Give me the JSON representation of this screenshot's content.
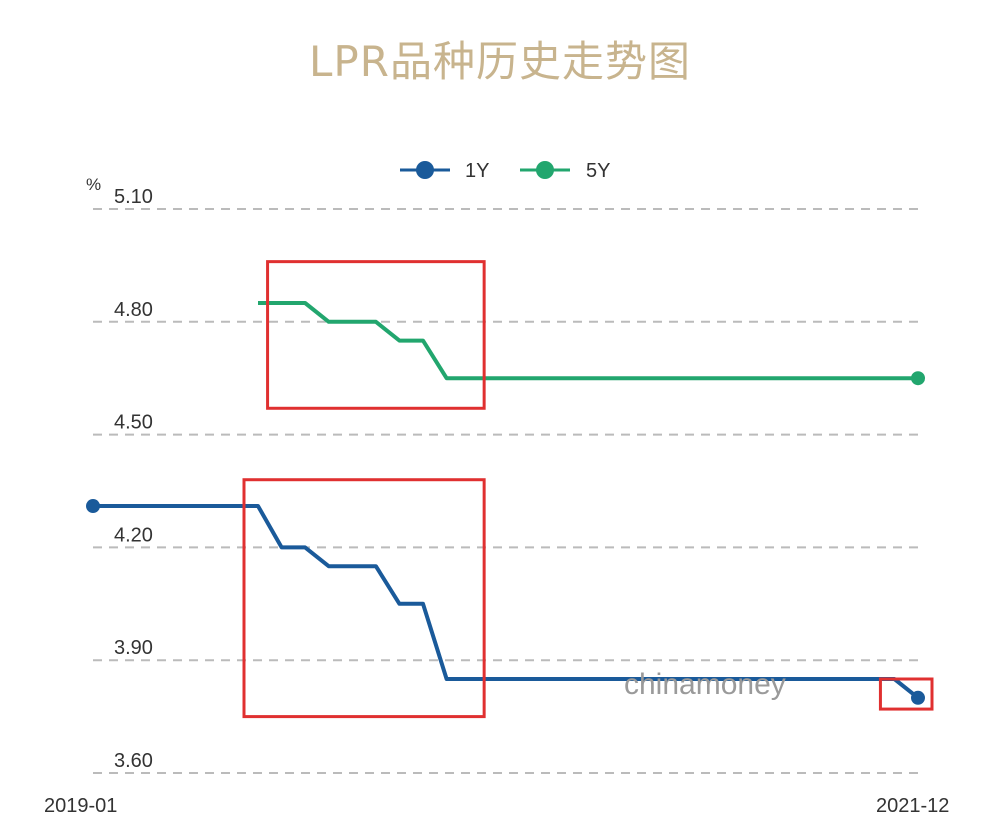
{
  "title": "LPR品种历史走势图",
  "watermark": "chinamoney",
  "colors": {
    "title": "#c8b48e",
    "series_1y": "#1a5a9a",
    "series_5y": "#22a66e",
    "highlight": "#e03030",
    "grid": "#bbbbbb"
  },
  "chart_data": {
    "type": "line",
    "title": "LPR品种历史走势图",
    "unit": "%",
    "xlabel": "",
    "ylabel": "",
    "x_tick_labels": [
      "2019-01",
      "2021-12"
    ],
    "x_range": [
      "2019-01",
      "2021-12"
    ],
    "ylim": [
      3.6,
      5.1
    ],
    "y_ticks": [
      5.1,
      4.8,
      4.5,
      4.2,
      3.9,
      3.6
    ],
    "y_tick_labels": [
      "5.10",
      "4.80",
      "4.50",
      "4.20",
      "3.90",
      "3.60"
    ],
    "grid": true,
    "grid_style": "dashed horizontal",
    "legend": {
      "position": "top-center",
      "entries": [
        "1Y",
        "5Y"
      ]
    },
    "series": [
      {
        "name": "1Y",
        "color": "#1a5a9a",
        "points": [
          [
            "2019-01",
            4.31
          ],
          [
            "2019-08",
            4.31
          ],
          [
            "2019-09",
            4.2
          ],
          [
            "2019-10",
            4.2
          ],
          [
            "2019-11",
            4.15
          ],
          [
            "2020-01",
            4.15
          ],
          [
            "2020-02",
            4.05
          ],
          [
            "2020-03",
            4.05
          ],
          [
            "2020-04",
            3.85
          ],
          [
            "2021-11",
            3.85
          ],
          [
            "2021-12",
            3.8
          ]
        ]
      },
      {
        "name": "5Y",
        "color": "#22a66e",
        "points": [
          [
            "2019-08",
            4.85
          ],
          [
            "2019-10",
            4.85
          ],
          [
            "2019-11",
            4.8
          ],
          [
            "2020-01",
            4.8
          ],
          [
            "2020-02",
            4.75
          ],
          [
            "2020-03",
            4.75
          ],
          [
            "2020-04",
            4.65
          ],
          [
            "2021-12",
            4.65
          ]
        ]
      }
    ],
    "annotations": [
      {
        "type": "highlight-box",
        "description": "5Y decline region",
        "x_range": [
          "2019-09",
          "2020-05"
        ],
        "y_range": [
          4.57,
          4.96
        ]
      },
      {
        "type": "highlight-box",
        "description": "1Y decline region",
        "x_range": [
          "2019-08",
          "2020-05"
        ],
        "y_range": [
          3.75,
          4.38
        ]
      },
      {
        "type": "highlight-box",
        "description": "1Y latest cut",
        "x_range": [
          "2021-11",
          "2021-12"
        ],
        "y_range": [
          3.77,
          3.85
        ]
      }
    ]
  }
}
